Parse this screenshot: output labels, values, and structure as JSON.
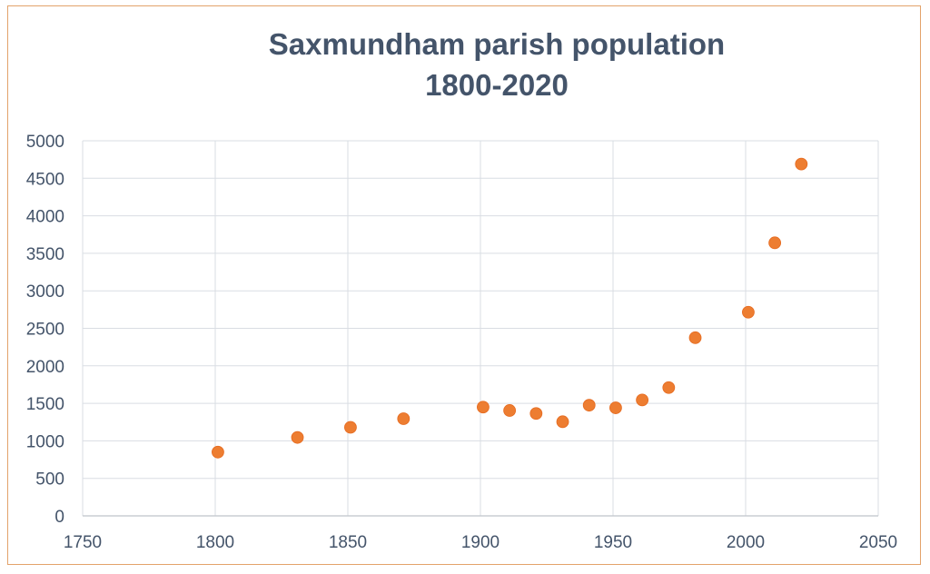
{
  "chart_data": {
    "type": "scatter",
    "title": [
      "Saxmundham parish population",
      "1800-2020"
    ],
    "xlim": [
      1750,
      2050
    ],
    "ylim": [
      0,
      5000
    ],
    "x_ticks": [
      1750,
      1800,
      1850,
      1900,
      1950,
      2000,
      2050
    ],
    "y_ticks": [
      0,
      500,
      1000,
      1500,
      2000,
      2500,
      3000,
      3500,
      4000,
      4500,
      5000
    ],
    "grid": true,
    "legend": "none",
    "marker_color": "#ed7d31",
    "points": [
      {
        "x": 1801,
        "y": 850
      },
      {
        "x": 1831,
        "y": 1045
      },
      {
        "x": 1851,
        "y": 1180
      },
      {
        "x": 1871,
        "y": 1295
      },
      {
        "x": 1901,
        "y": 1450
      },
      {
        "x": 1911,
        "y": 1405
      },
      {
        "x": 1921,
        "y": 1365
      },
      {
        "x": 1931,
        "y": 1255
      },
      {
        "x": 1941,
        "y": 1475
      },
      {
        "x": 1951,
        "y": 1440
      },
      {
        "x": 1961,
        "y": 1545
      },
      {
        "x": 1971,
        "y": 1710
      },
      {
        "x": 1981,
        "y": 2375
      },
      {
        "x": 2001,
        "y": 2715
      },
      {
        "x": 2011,
        "y": 3640
      },
      {
        "x": 2021,
        "y": 4690
      }
    ]
  }
}
